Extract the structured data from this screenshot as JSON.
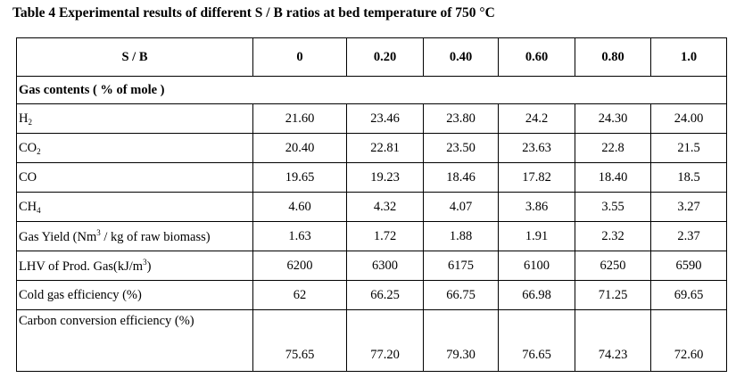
{
  "caption": "Table 4  Experimental results of different S / B  ratios at bed temperature of 750 °C",
  "header": {
    "label": "S / B",
    "ratios": [
      "0",
      "0.20",
      "0.40",
      "0.60",
      "0.80",
      "1.0"
    ]
  },
  "section_label": "Gas contents ( % of mole )",
  "rows": [
    {
      "label_main": "H",
      "label_sub": "2",
      "label_tail": "",
      "label_sup": "",
      "label_end": "",
      "values": [
        "21.60",
        "23.46",
        "23.80",
        "24.2",
        "24.30",
        "24.00"
      ]
    },
    {
      "label_main": "CO",
      "label_sub": "2",
      "label_tail": "",
      "label_sup": "",
      "label_end": "",
      "values": [
        "20.40",
        "22.81",
        "23.50",
        "23.63",
        "22.8",
        "21.5"
      ]
    },
    {
      "label_main": "CO",
      "label_sub": "",
      "label_tail": "",
      "label_sup": "",
      "label_end": "",
      "values": [
        "19.65",
        "19.23",
        "18.46",
        "17.82",
        "18.40",
        "18.5"
      ]
    },
    {
      "label_main": "CH",
      "label_sub": "4",
      "label_tail": "",
      "label_sup": "",
      "label_end": "",
      "values": [
        "4.60",
        "4.32",
        "4.07",
        "3.86",
        "3.55",
        "3.27"
      ]
    },
    {
      "label_main": "Gas Yield (Nm",
      "label_sub": "",
      "label_sup": "3",
      "label_end": " / kg of raw biomass)",
      "label_tail": "",
      "values": [
        "1.63",
        "1.72",
        "1.88",
        "1.91",
        "2.32",
        "2.37"
      ]
    },
    {
      "label_main": "LHV of Prod. Gas(kJ/m",
      "label_sub": "",
      "label_sup": "3",
      "label_end": ")",
      "label_tail": "",
      "values": [
        "6200",
        "6300",
        "6175",
        "6100",
        "6250",
        "6590"
      ]
    },
    {
      "label_main": "Cold gas efficiency (%)",
      "label_sub": "",
      "label_sup": "",
      "label_end": "",
      "label_tail": "",
      "values": [
        "62",
        "66.25",
        "66.75",
        "66.98",
        "71.25",
        "69.65"
      ]
    },
    {
      "label_main": "Carbon conversion efficiency (%)",
      "label_sub": "",
      "label_sup": "",
      "label_end": "",
      "label_tail": "",
      "values": [
        "75.65",
        "77.20",
        "79.30",
        "76.65",
        "74.23",
        "72.60"
      ]
    }
  ]
}
